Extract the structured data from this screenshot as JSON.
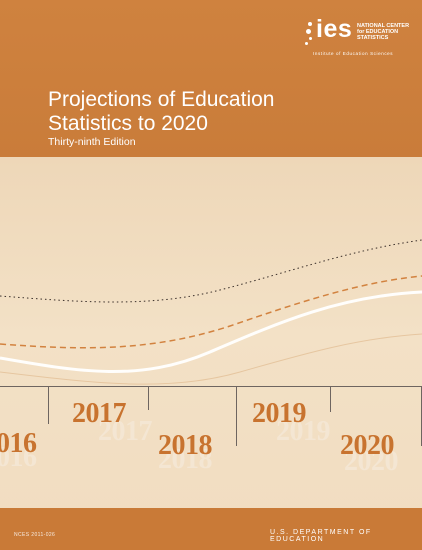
{
  "logo": {
    "mark": "ies",
    "agency": "NATIONAL CENTER for EDUCATION STATISTICS",
    "institute": "Institute of Education Sciences"
  },
  "title": {
    "line1": "Projections of Education",
    "line2": "Statistics to 2020",
    "edition": "Thirty-ninth Edition"
  },
  "timeline": {
    "years": [
      "016",
      "2017",
      "2018",
      "2019",
      "2020"
    ]
  },
  "footer": {
    "report_code": "NCES 2011-026",
    "department": "U.S. DEPARTMENT OF EDUCATION"
  },
  "colors": {
    "cover_orange": "#c97a37",
    "cream": "#f1dcc0",
    "year_orange": "#c8732f"
  }
}
